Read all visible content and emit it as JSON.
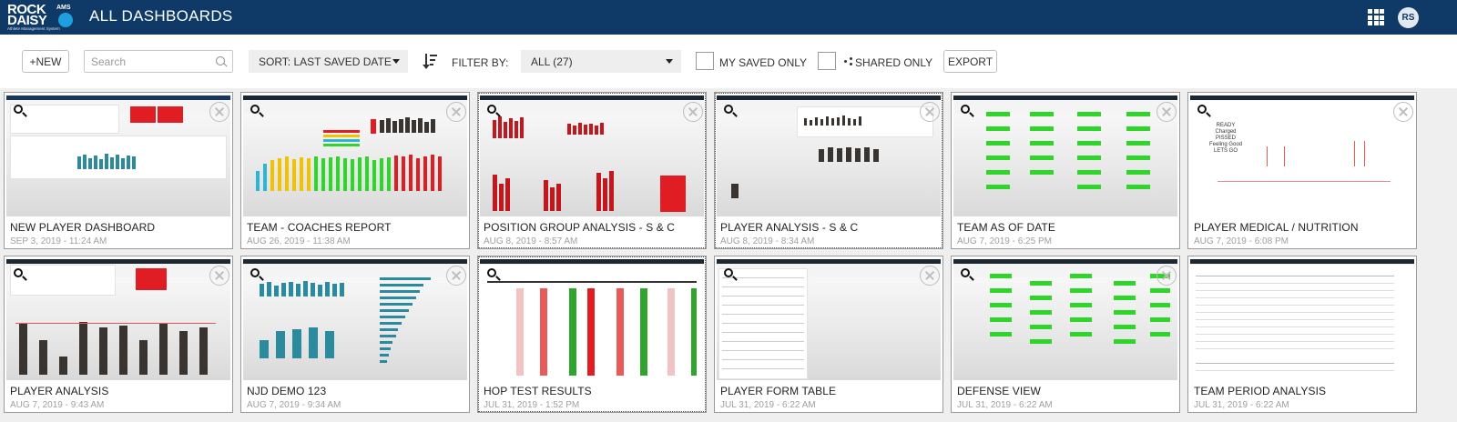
{
  "header": {
    "logo_line1": "ROCK",
    "logo_line2": "DAISY",
    "logo_ams": "AMS",
    "logo_tagline": "Athlete Management System",
    "title": "ALL DASHBOARDS",
    "user_initials": "RS",
    "apps_icon": "apps-grid-icon"
  },
  "toolbar": {
    "new_label": "+NEW",
    "search_placeholder": "Search",
    "sort_label": "SORT: LAST SAVED DATE",
    "filter_by_label": "FILTER BY:",
    "filter_value": "ALL (27)",
    "my_saved_only_label": "MY SAVED ONLY",
    "shared_only_label": "SHARED ONLY",
    "export_label": "EXPORT"
  },
  "colors": {
    "header_bg": "#0f3a68",
    "accent_red": "#e11d24",
    "accent_green": "#2fd62a",
    "bar_teal": "#2b8a9e",
    "bar_dark": "#3a3430"
  },
  "dashboards": [
    {
      "title": "NEW PLAYER DASHBOARD",
      "date": "SEP 3, 2019 - 11:24 AM"
    },
    {
      "title": "TEAM - COACHES REPORT",
      "date": "AUG 26, 2019 - 11:38 AM"
    },
    {
      "title": "POSITION GROUP ANALYSIS - S & C",
      "date": "AUG 8, 2019 - 8:57 AM"
    },
    {
      "title": "PLAYER ANALYSIS - S & C",
      "date": "AUG 8, 2019 - 8:34 AM"
    },
    {
      "title": "TEAM AS OF DATE",
      "date": "AUG 7, 2019 - 6:25 PM"
    },
    {
      "title": "PLAYER MEDICAL / NUTRITION",
      "date": "AUG 7, 2019 - 6:08 PM"
    },
    {
      "title": "PLAYER ANALYSIS",
      "date": "AUG 7, 2019 - 9:43 AM"
    },
    {
      "title": "NJD DEMO 123",
      "date": "AUG 7, 2019 - 9:34 AM"
    },
    {
      "title": "HOP TEST RESULTS",
      "date": "JUL 31, 2019 - 1:52 PM"
    },
    {
      "title": "PLAYER FORM TABLE",
      "date": "JUL 31, 2019 - 6:22 AM"
    },
    {
      "title": "DEFENSE VIEW",
      "date": "JUL 31, 2019 - 6:22 AM"
    },
    {
      "title": "TEAM PERIOD ANALYSIS",
      "date": "JUL 31, 2019 - 6:22 AM"
    }
  ],
  "thumb_medical_text": [
    "READY",
    "Charged",
    "PISSED",
    "Feeling Good",
    "LETS GO"
  ]
}
